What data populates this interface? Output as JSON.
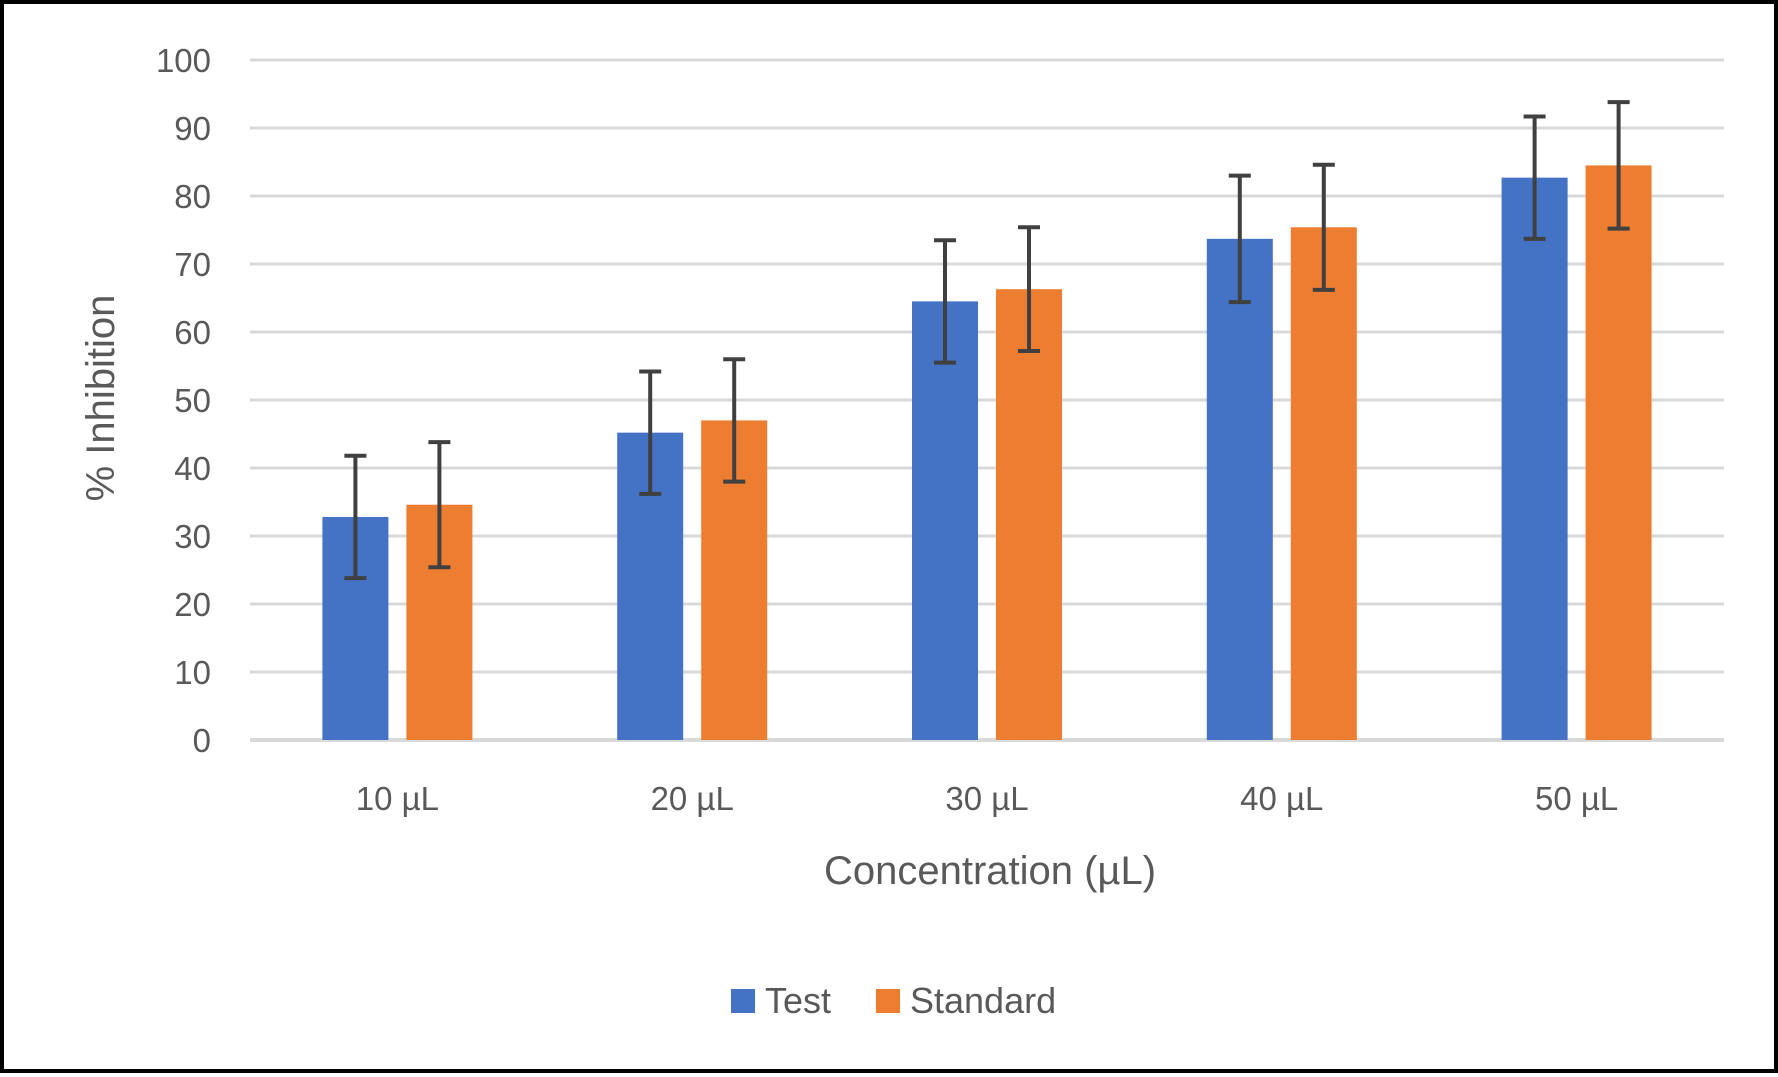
{
  "chart_data": {
    "type": "bar",
    "categories": [
      "10 µL",
      "20 µL",
      "30 µL",
      "40 µL",
      "50 µL"
    ],
    "series": [
      {
        "name": "Test",
        "color": "#4472C4",
        "values": [
          32.8,
          45.2,
          64.5,
          73.7,
          82.7
        ],
        "error": [
          9,
          9,
          9,
          9.3,
          9
        ]
      },
      {
        "name": "Standard",
        "color": "#ED7D31",
        "values": [
          34.6,
          47.0,
          66.3,
          75.4,
          84.5
        ],
        "error": [
          9.2,
          9,
          9.1,
          9.2,
          9.3
        ]
      }
    ],
    "xlabel": "Concentration (µL)",
    "ylabel": "% Inhibition",
    "ylim": [
      0,
      100
    ],
    "yticks": [
      "0",
      "10",
      "20",
      "30",
      "40",
      "50",
      "60",
      "70",
      "80",
      "90",
      "100"
    ],
    "grid": true,
    "legend_position": "bottom",
    "colors": {
      "gridline": "#D9D9D9",
      "text": "#595959",
      "errorbar": "#404040"
    }
  }
}
